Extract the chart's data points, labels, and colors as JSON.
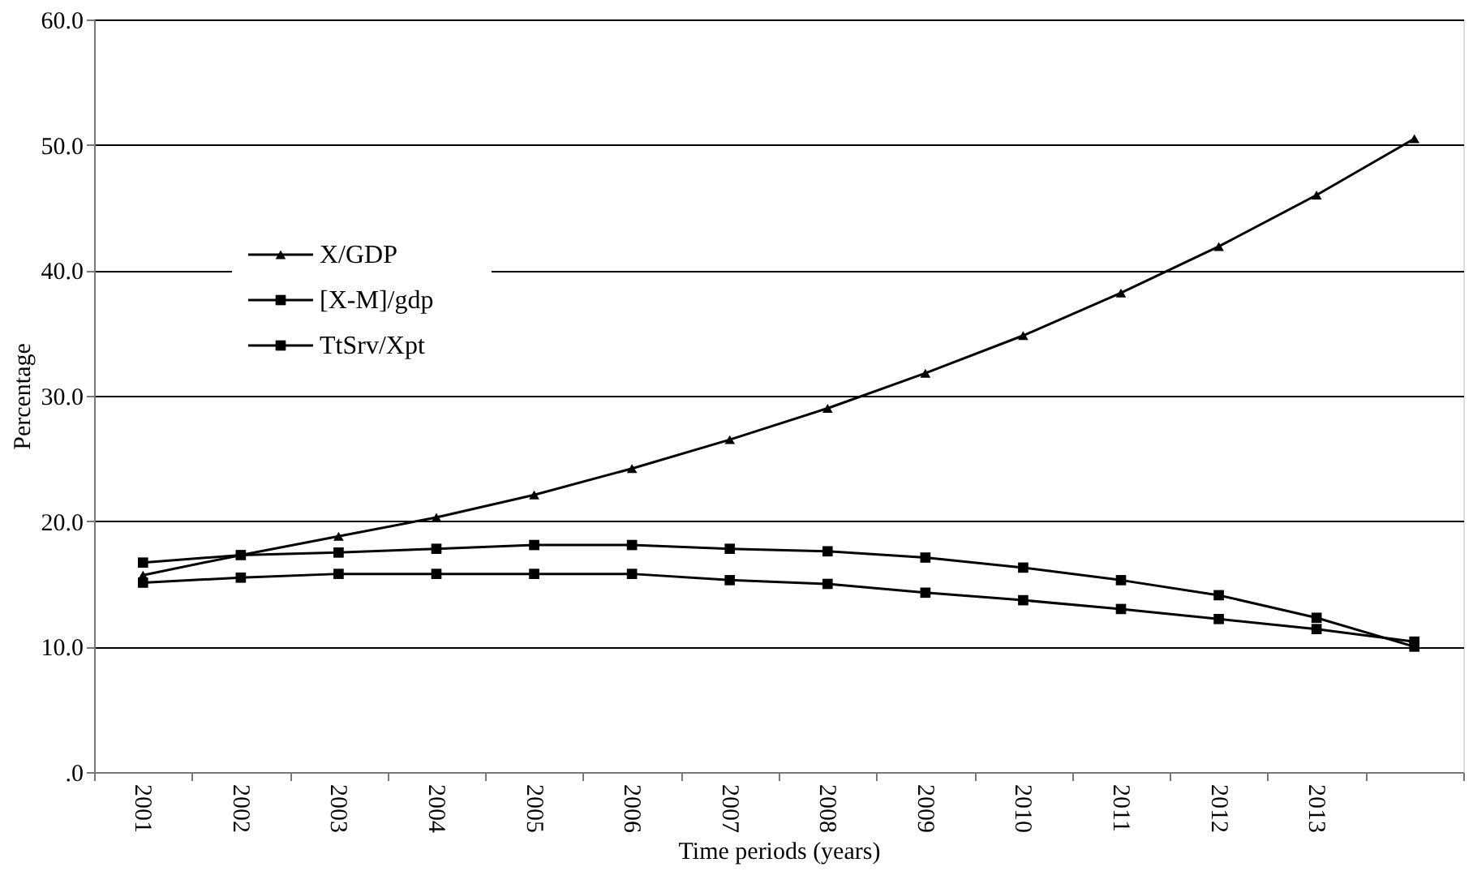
{
  "chart_data": {
    "type": "line",
    "xlabel": "Time periods (years)",
    "ylabel": "Percentage",
    "categories": [
      "2001",
      "2002",
      "2003",
      "2004",
      "2005",
      "2006",
      "2007",
      "2008",
      "2009",
      "2010",
      "2011",
      "2012",
      "2013",
      null
    ],
    "series": [
      {
        "name": "X/GDP",
        "color": "#000000",
        "marker": "triangle",
        "values": [
          15.7,
          17.3,
          18.8,
          20.3,
          22.1,
          24.2,
          26.5,
          29.0,
          31.8,
          34.8,
          38.2,
          41.9,
          46.0,
          50.5
        ]
      },
      {
        "name": "[X-M]/gdp",
        "color": "#000000",
        "marker": "square",
        "values": [
          16.7,
          17.3,
          17.5,
          17.8,
          18.1,
          18.1,
          17.8,
          17.6,
          17.1,
          16.3,
          15.3,
          14.1,
          12.3,
          10.0
        ]
      },
      {
        "name": "TtSrv/Xpt",
        "color": "#000000",
        "marker": "square",
        "values": [
          15.1,
          15.5,
          15.8,
          15.8,
          15.8,
          15.8,
          15.3,
          15.0,
          14.3,
          13.7,
          13.0,
          12.2,
          11.4,
          10.4
        ]
      }
    ],
    "ylim": [
      0,
      60
    ],
    "yticks": [
      {
        "value": 0,
        "label": ".0"
      },
      {
        "value": 10,
        "label": "10.0"
      },
      {
        "value": 20,
        "label": "20.0"
      },
      {
        "value": 30,
        "label": "30.0"
      },
      {
        "value": 40,
        "label": "40.0"
      },
      {
        "value": 50,
        "label": "50.0"
      },
      {
        "value": 60,
        "label": "60.0"
      }
    ],
    "grid": "y",
    "legend": "left",
    "line_style": "solid"
  }
}
